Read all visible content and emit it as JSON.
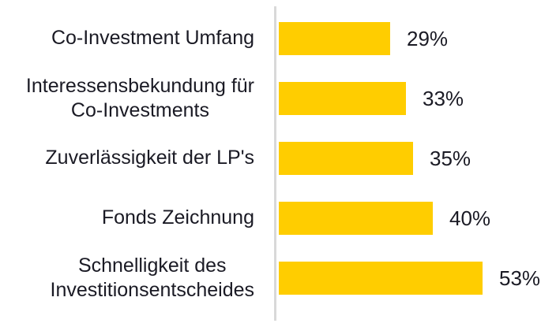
{
  "chart_data": {
    "type": "bar",
    "orientation": "horizontal",
    "title": "",
    "xlabel": "",
    "ylabel": "",
    "xlim": [
      0,
      100
    ],
    "grid": false,
    "legend": false,
    "categories": [
      "Co-Investment Umfang",
      "Interessensbekundung für\nCo-Investments",
      "Zuverlässigkeit der LP's",
      "Fonds Zeichnung",
      "Schnelligkeit des\nInvestitionsentscheides"
    ],
    "values": [
      29,
      33,
      35,
      40,
      53
    ],
    "value_labels": [
      "29%",
      "33%",
      "35%",
      "40%",
      "53%"
    ],
    "colors": {
      "bar": "#FFCD00",
      "axis_line": "#D9D9D9",
      "text": "#1A1A24",
      "background": "#FFFFFF"
    }
  }
}
